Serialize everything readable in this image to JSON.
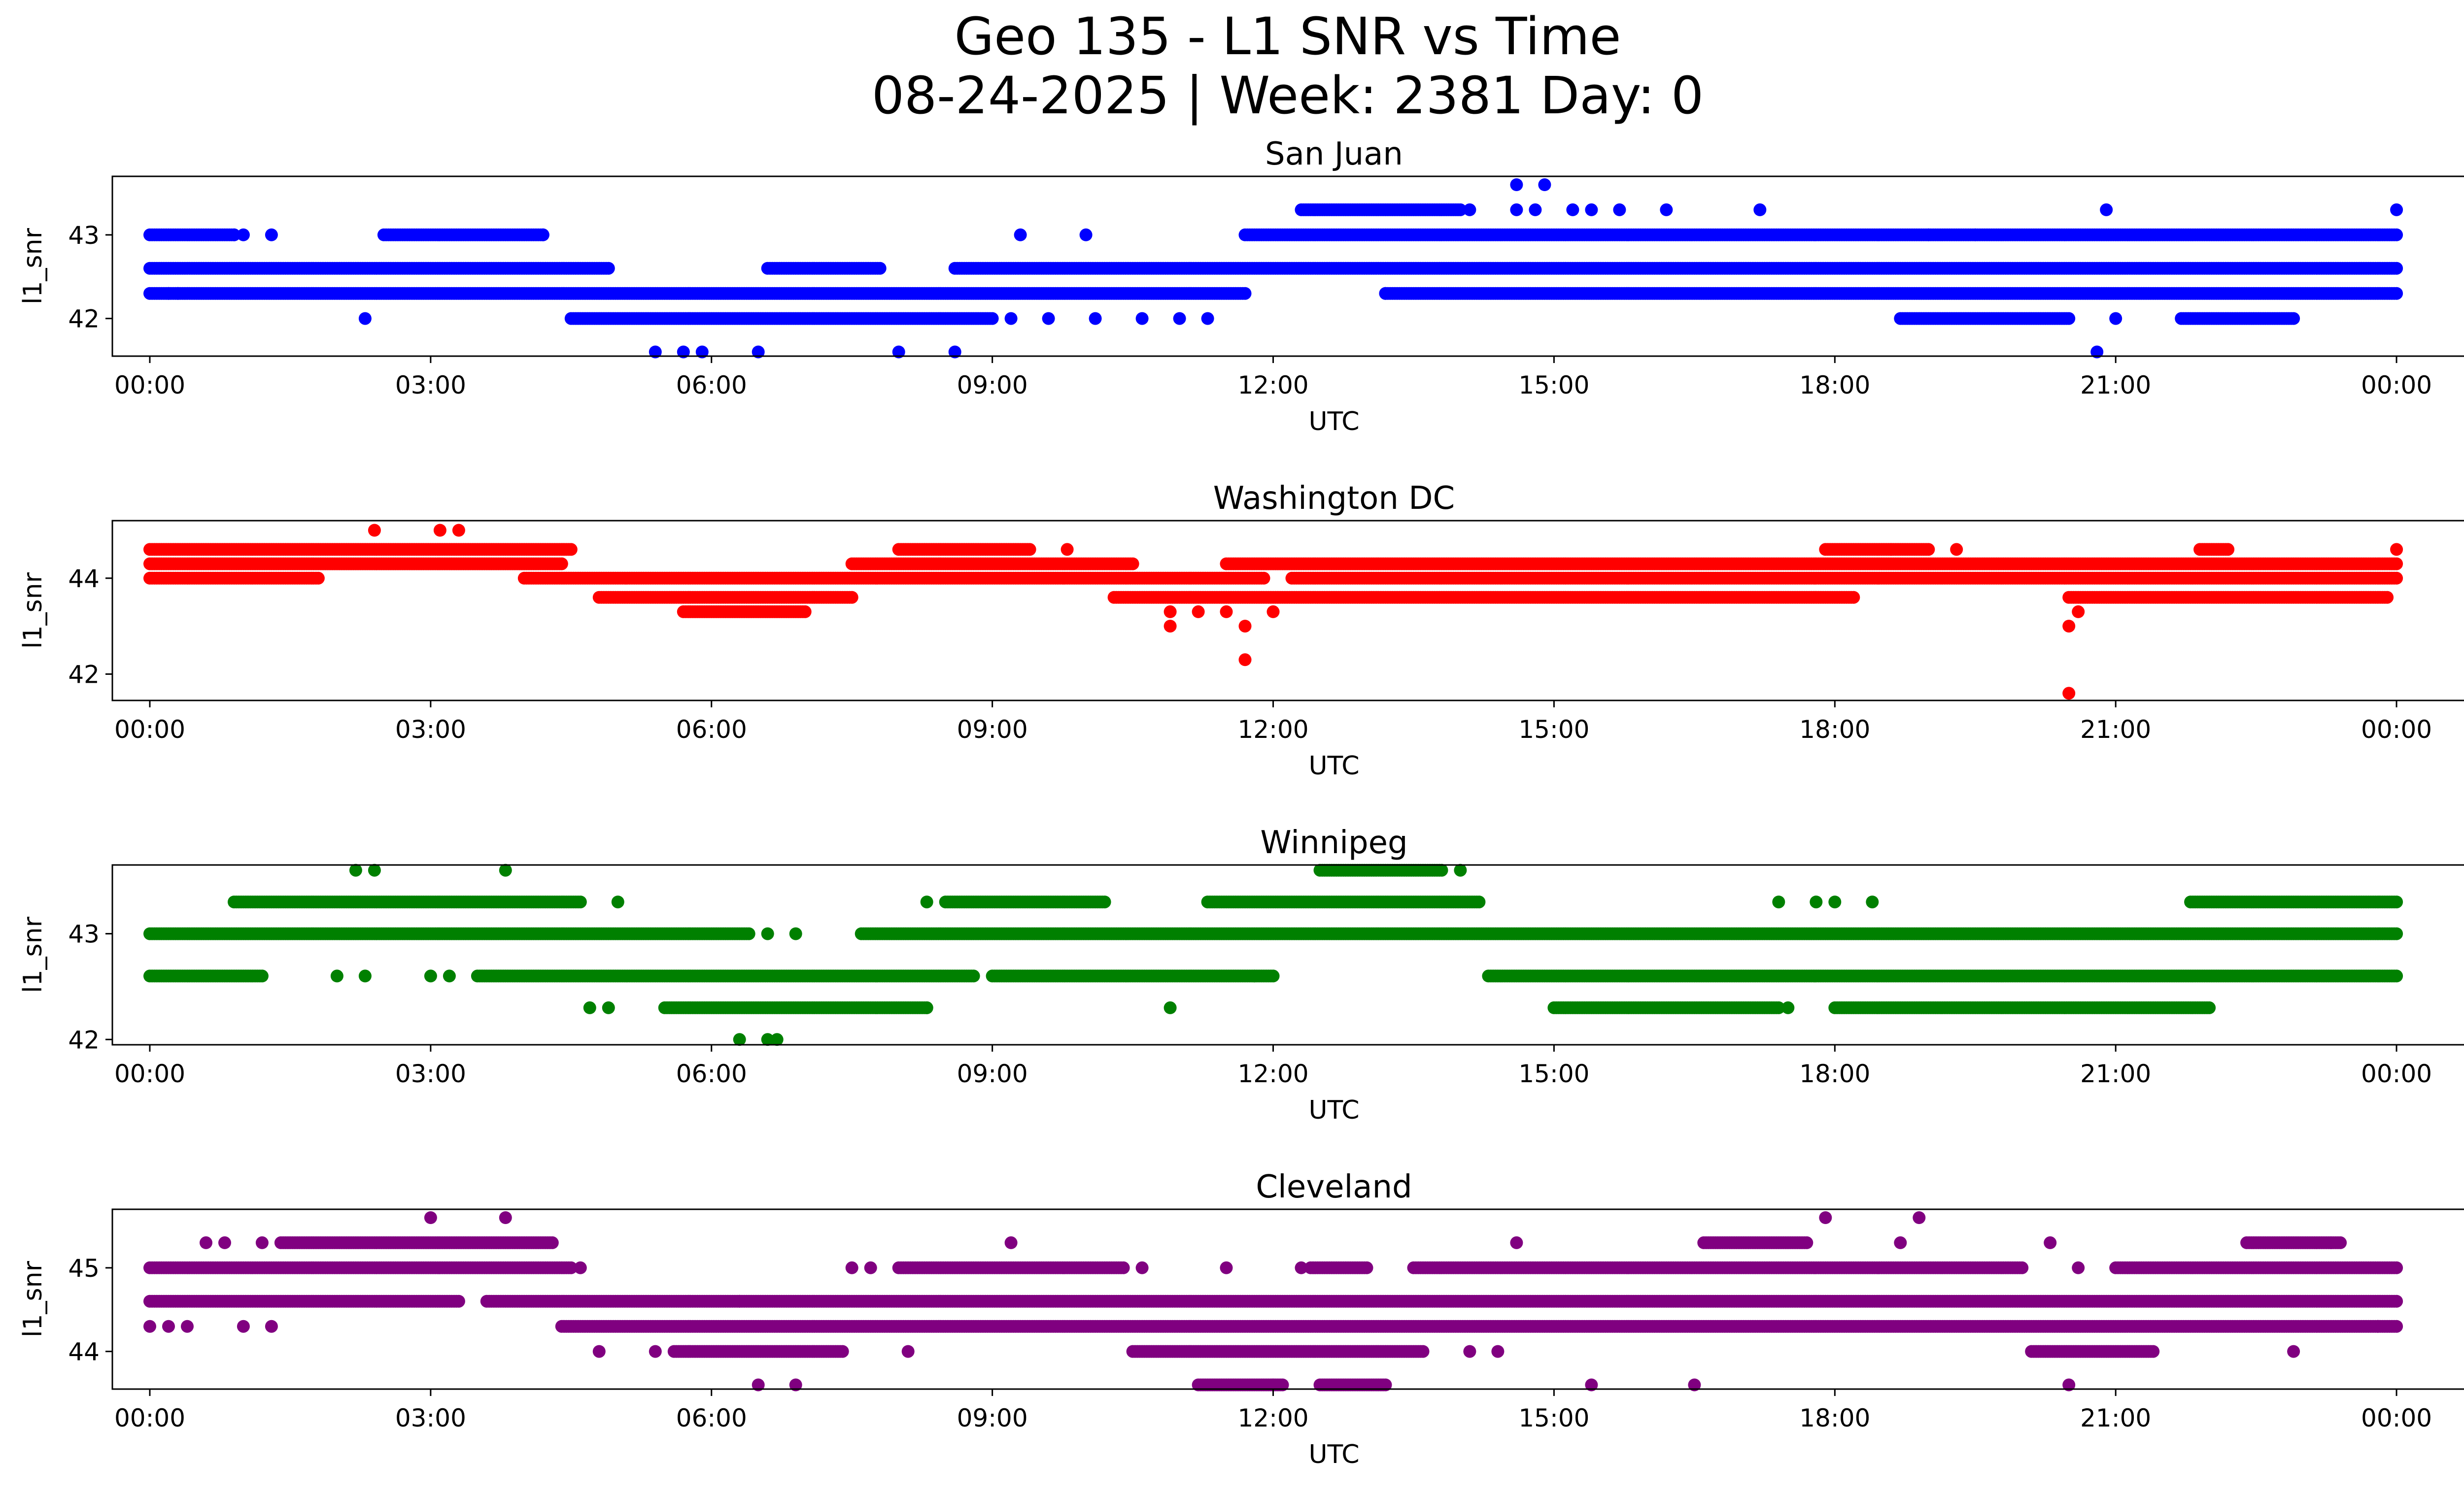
{
  "figure": {
    "title_line1": "Geo 135 - L1 SNR vs Time",
    "title_line2": "08-24-2025 | Week: 2381 Day: 0"
  },
  "chart_data": [
    {
      "type": "scatter",
      "title": "San Juan",
      "xlabel": "UTC",
      "ylabel": "l1_snr",
      "color": "#0000ff",
      "xlim": [
        -0.4,
        25.7
      ],
      "ylim": [
        41.55,
        43.7
      ],
      "xticks": [
        0,
        3,
        6,
        9,
        12,
        15,
        18,
        21,
        24
      ],
      "xticklabels": [
        "00:00",
        "03:00",
        "06:00",
        "09:00",
        "12:00",
        "15:00",
        "18:00",
        "21:00",
        "00:00"
      ],
      "yticks": [
        42,
        43
      ],
      "bands": [
        {
          "y": 42.3,
          "segments": [
            [
              0.0,
              11.7
            ],
            [
              13.2,
              24.0
            ]
          ]
        },
        {
          "y": 42.6,
          "segments": [
            [
              0.0,
              4.9
            ],
            [
              6.6,
              7.8
            ],
            [
              8.6,
              24.0
            ]
          ]
        },
        {
          "y": 43.0,
          "segments": [
            [
              0.0,
              0.9
            ],
            [
              2.5,
              4.2
            ],
            [
              11.7,
              24.0
            ]
          ]
        },
        {
          "y": 42.0,
          "segments": [
            [
              4.5,
              9.0
            ],
            [
              18.7,
              20.5
            ],
            [
              21.7,
              22.9
            ]
          ]
        },
        {
          "y": 43.3,
          "segments": [
            [
              12.3,
              14.0
            ]
          ]
        }
      ],
      "points": [
        {
          "x": 0.2,
          "y": 42.3
        },
        {
          "x": 0.3,
          "y": 42.3
        },
        {
          "x": 0.9,
          "y": 43.0
        },
        {
          "x": 1.0,
          "y": 43.0
        },
        {
          "x": 1.3,
          "y": 43.0
        },
        {
          "x": 2.3,
          "y": 42.0
        },
        {
          "x": 4.2,
          "y": 43.0
        },
        {
          "x": 5.4,
          "y": 41.6
        },
        {
          "x": 5.7,
          "y": 41.6
        },
        {
          "x": 5.9,
          "y": 41.6
        },
        {
          "x": 6.5,
          "y": 41.6
        },
        {
          "x": 8.0,
          "y": 41.6
        },
        {
          "x": 8.6,
          "y": 41.6
        },
        {
          "x": 9.2,
          "y": 42.0
        },
        {
          "x": 9.3,
          "y": 43.0
        },
        {
          "x": 9.6,
          "y": 42.0
        },
        {
          "x": 10.0,
          "y": 43.0
        },
        {
          "x": 10.1,
          "y": 42.0
        },
        {
          "x": 10.6,
          "y": 42.0
        },
        {
          "x": 11.0,
          "y": 42.0
        },
        {
          "x": 11.3,
          "y": 42.0
        },
        {
          "x": 13.2,
          "y": 42.3
        },
        {
          "x": 14.1,
          "y": 43.3
        },
        {
          "x": 14.6,
          "y": 43.6
        },
        {
          "x": 14.9,
          "y": 43.6
        },
        {
          "x": 14.6,
          "y": 43.3
        },
        {
          "x": 14.8,
          "y": 43.3
        },
        {
          "x": 15.2,
          "y": 43.3
        },
        {
          "x": 15.4,
          "y": 43.3
        },
        {
          "x": 15.7,
          "y": 43.3
        },
        {
          "x": 16.2,
          "y": 43.3
        },
        {
          "x": 17.2,
          "y": 43.3
        },
        {
          "x": 19.0,
          "y": 43.0
        },
        {
          "x": 19.5,
          "y": 43.0
        },
        {
          "x": 20.9,
          "y": 43.3
        },
        {
          "x": 20.8,
          "y": 41.6
        },
        {
          "x": 21.0,
          "y": 42.0
        },
        {
          "x": 24.0,
          "y": 43.3
        }
      ]
    },
    {
      "type": "scatter",
      "title": "Washington DC",
      "xlabel": "UTC",
      "ylabel": "l1_snr",
      "color": "#ff0000",
      "xlim": [
        -0.4,
        25.7
      ],
      "ylim": [
        41.45,
        45.2
      ],
      "xticks": [
        0,
        3,
        6,
        9,
        12,
        15,
        18,
        21,
        24
      ],
      "xticklabels": [
        "00:00",
        "03:00",
        "06:00",
        "09:00",
        "12:00",
        "15:00",
        "18:00",
        "21:00",
        "00:00"
      ],
      "yticks": [
        42,
        44
      ],
      "bands": [
        {
          "y": 44.3,
          "segments": [
            [
              0.0,
              4.4
            ],
            [
              7.5,
              10.5
            ],
            [
              11.5,
              24.0
            ]
          ]
        },
        {
          "y": 44.0,
          "segments": [
            [
              0.0,
              1.8
            ],
            [
              4.0,
              11.9
            ],
            [
              12.2,
              24.0
            ]
          ]
        },
        {
          "y": 44.6,
          "segments": [
            [
              0.0,
              4.5
            ],
            [
              8.0,
              9.4
            ],
            [
              17.9,
              19.0
            ],
            [
              21.9,
              22.2
            ]
          ]
        },
        {
          "y": 43.6,
          "segments": [
            [
              4.8,
              7.5
            ],
            [
              10.3,
              18.2
            ],
            [
              20.5,
              23.9
            ]
          ]
        },
        {
          "y": 43.3,
          "segments": [
            [
              5.7,
              7.0
            ]
          ]
        }
      ],
      "points": [
        {
          "x": 2.4,
          "y": 45.0
        },
        {
          "x": 3.1,
          "y": 45.0
        },
        {
          "x": 3.3,
          "y": 45.0
        },
        {
          "x": 10.9,
          "y": 43.3
        },
        {
          "x": 10.9,
          "y": 43.0
        },
        {
          "x": 11.2,
          "y": 43.3
        },
        {
          "x": 11.5,
          "y": 43.3
        },
        {
          "x": 11.7,
          "y": 43.0
        },
        {
          "x": 11.7,
          "y": 42.3
        },
        {
          "x": 12.0,
          "y": 43.3
        },
        {
          "x": 9.8,
          "y": 44.6
        },
        {
          "x": 18.6,
          "y": 44.6
        },
        {
          "x": 19.3,
          "y": 44.6
        },
        {
          "x": 20.5,
          "y": 43.0
        },
        {
          "x": 20.5,
          "y": 41.6
        },
        {
          "x": 20.6,
          "y": 43.3
        },
        {
          "x": 24.0,
          "y": 44.6
        }
      ]
    },
    {
      "type": "scatter",
      "title": "Winnipeg",
      "xlabel": "UTC",
      "ylabel": "l1_snr",
      "color": "#008000",
      "xlim": [
        -0.4,
        25.7
      ],
      "ylim": [
        41.95,
        43.65
      ],
      "xticks": [
        0,
        3,
        6,
        9,
        12,
        15,
        18,
        21,
        24
      ],
      "xticklabels": [
        "00:00",
        "03:00",
        "06:00",
        "09:00",
        "12:00",
        "15:00",
        "18:00",
        "21:00",
        "00:00"
      ],
      "yticks": [
        42,
        43
      ],
      "bands": [
        {
          "y": 43.0,
          "segments": [
            [
              0.0,
              6.4
            ],
            [
              7.6,
              24.0
            ]
          ]
        },
        {
          "y": 42.6,
          "segments": [
            [
              0.0,
              1.2
            ],
            [
              3.5,
              8.8
            ],
            [
              9.0,
              12.0
            ],
            [
              14.3,
              24.0
            ]
          ]
        },
        {
          "y": 43.3,
          "segments": [
            [
              0.9,
              4.6
            ],
            [
              8.5,
              10.2
            ],
            [
              11.3,
              14.2
            ],
            [
              21.8,
              24.0
            ]
          ]
        },
        {
          "y": 42.3,
          "segments": [
            [
              5.5,
              8.3
            ],
            [
              15.0,
              17.4
            ],
            [
              18.0,
              22.0
            ]
          ]
        },
        {
          "y": 43.6,
          "segments": [
            [
              12.5,
              13.8
            ]
          ]
        }
      ],
      "points": [
        {
          "x": 2.2,
          "y": 43.6
        },
        {
          "x": 2.4,
          "y": 43.6
        },
        {
          "x": 3.8,
          "y": 43.6
        },
        {
          "x": 2.0,
          "y": 42.6
        },
        {
          "x": 2.3,
          "y": 42.6
        },
        {
          "x": 3.0,
          "y": 42.6
        },
        {
          "x": 3.2,
          "y": 42.6
        },
        {
          "x": 4.7,
          "y": 42.3
        },
        {
          "x": 4.9,
          "y": 42.3
        },
        {
          "x": 5.0,
          "y": 43.3
        },
        {
          "x": 6.3,
          "y": 42.0
        },
        {
          "x": 6.6,
          "y": 42.0
        },
        {
          "x": 6.7,
          "y": 42.0
        },
        {
          "x": 6.6,
          "y": 43.0
        },
        {
          "x": 6.9,
          "y": 43.0
        },
        {
          "x": 8.3,
          "y": 42.3
        },
        {
          "x": 8.3,
          "y": 43.3
        },
        {
          "x": 10.9,
          "y": 42.3
        },
        {
          "x": 11.8,
          "y": 42.6
        },
        {
          "x": 14.0,
          "y": 43.6
        },
        {
          "x": 17.4,
          "y": 43.3
        },
        {
          "x": 17.8,
          "y": 43.3
        },
        {
          "x": 18.0,
          "y": 43.3
        },
        {
          "x": 18.4,
          "y": 43.3
        },
        {
          "x": 17.5,
          "y": 42.3
        }
      ]
    },
    {
      "type": "scatter",
      "title": "Cleveland",
      "xlabel": "UTC",
      "ylabel": "l1_snr",
      "color": "#800080",
      "xlim": [
        -0.4,
        25.7
      ],
      "ylim": [
        43.55,
        45.7
      ],
      "xticks": [
        0,
        3,
        6,
        9,
        12,
        15,
        18,
        21,
        24
      ],
      "xticklabels": [
        "00:00",
        "03:00",
        "06:00",
        "09:00",
        "12:00",
        "15:00",
        "18:00",
        "21:00",
        "00:00"
      ],
      "yticks": [
        44,
        45
      ],
      "bands": [
        {
          "y": 44.6,
          "segments": [
            [
              0.0,
              3.3
            ],
            [
              3.6,
              24.0
            ]
          ]
        },
        {
          "y": 45.0,
          "segments": [
            [
              0.0,
              4.5
            ],
            [
              8.0,
              10.4
            ],
            [
              12.4,
              13.0
            ],
            [
              13.5,
              20.0
            ],
            [
              21.0,
              24.0
            ]
          ]
        },
        {
          "y": 44.3,
          "segments": [
            [
              4.4,
              24.0
            ]
          ]
        },
        {
          "y": 45.3,
          "segments": [
            [
              1.4,
              4.3
            ],
            [
              16.6,
              17.7
            ],
            [
              22.4,
              23.4
            ]
          ]
        },
        {
          "y": 44.0,
          "segments": [
            [
              5.6,
              7.4
            ],
            [
              10.5,
              13.6
            ],
            [
              20.1,
              21.4
            ]
          ]
        },
        {
          "y": 43.6,
          "segments": [
            [
              11.2,
              12.1
            ],
            [
              12.5,
              13.2
            ]
          ]
        }
      ],
      "points": [
        {
          "x": 0.0,
          "y": 44.3
        },
        {
          "x": 0.2,
          "y": 44.3
        },
        {
          "x": 0.4,
          "y": 44.3
        },
        {
          "x": 1.0,
          "y": 44.3
        },
        {
          "x": 1.3,
          "y": 44.3
        },
        {
          "x": 0.6,
          "y": 45.3
        },
        {
          "x": 0.8,
          "y": 45.3
        },
        {
          "x": 1.2,
          "y": 45.3
        },
        {
          "x": 3.0,
          "y": 45.6
        },
        {
          "x": 3.8,
          "y": 45.6
        },
        {
          "x": 4.6,
          "y": 45.0
        },
        {
          "x": 4.8,
          "y": 44.0
        },
        {
          "x": 5.4,
          "y": 44.0
        },
        {
          "x": 6.3,
          "y": 44.6
        },
        {
          "x": 6.5,
          "y": 43.6
        },
        {
          "x": 6.9,
          "y": 43.6
        },
        {
          "x": 7.5,
          "y": 45.0
        },
        {
          "x": 7.7,
          "y": 45.0
        },
        {
          "x": 8.1,
          "y": 44.0
        },
        {
          "x": 9.2,
          "y": 45.3
        },
        {
          "x": 10.6,
          "y": 45.0
        },
        {
          "x": 11.5,
          "y": 45.0
        },
        {
          "x": 12.3,
          "y": 45.0
        },
        {
          "x": 12.0,
          "y": 43.6
        },
        {
          "x": 14.1,
          "y": 44.0
        },
        {
          "x": 14.4,
          "y": 44.0
        },
        {
          "x": 14.6,
          "y": 45.3
        },
        {
          "x": 15.4,
          "y": 43.6
        },
        {
          "x": 16.5,
          "y": 43.6
        },
        {
          "x": 17.9,
          "y": 45.6
        },
        {
          "x": 18.9,
          "y": 45.6
        },
        {
          "x": 18.7,
          "y": 45.3
        },
        {
          "x": 20.3,
          "y": 45.3
        },
        {
          "x": 20.6,
          "y": 45.0
        },
        {
          "x": 20.5,
          "y": 43.6
        },
        {
          "x": 22.9,
          "y": 44.0
        },
        {
          "x": 23.3,
          "y": 45.3
        },
        {
          "x": 23.8,
          "y": 44.3
        }
      ]
    }
  ]
}
